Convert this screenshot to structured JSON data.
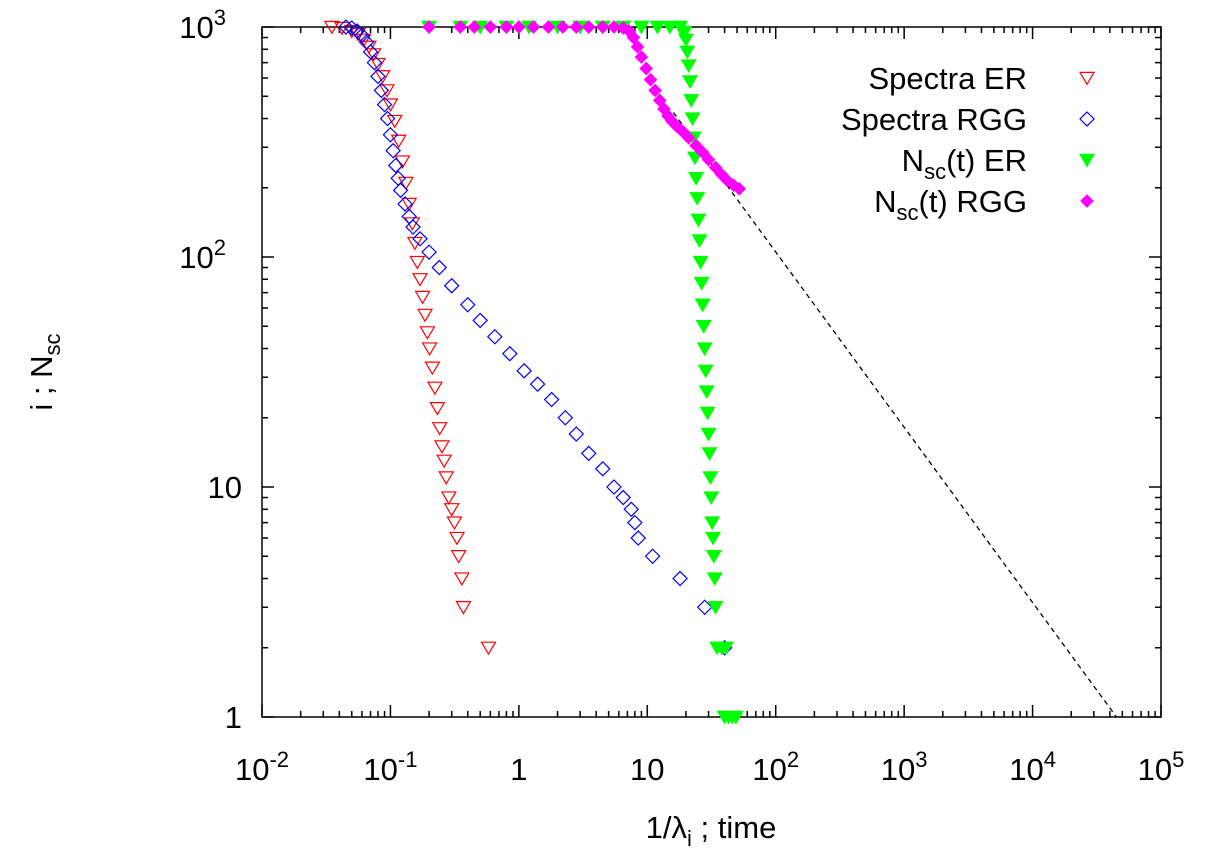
{
  "chart_data": {
    "type": "scatter",
    "title": "",
    "xlabel": "1/λ_i ; time",
    "ylabel": "i ; N_sc",
    "x_scale": "log",
    "y_scale": "log",
    "xlim": [
      0.01,
      100000
    ],
    "ylim": [
      1,
      1000
    ],
    "grid": false,
    "legend_position": "top-right",
    "x_ticks": [
      {
        "value": 0.01,
        "base": "10",
        "exp": "-2"
      },
      {
        "value": 0.1,
        "base": "10",
        "exp": "-1"
      },
      {
        "value": 1,
        "base": "1",
        "exp": ""
      },
      {
        "value": 10,
        "base": "10",
        "exp": ""
      },
      {
        "value": 100,
        "base": "10",
        "exp": "2"
      },
      {
        "value": 1000,
        "base": "10",
        "exp": "3"
      },
      {
        "value": 10000,
        "base": "10",
        "exp": "4"
      },
      {
        "value": 100000,
        "base": "10",
        "exp": "5"
      }
    ],
    "y_ticks": [
      {
        "value": 1,
        "base": "1",
        "exp": ""
      },
      {
        "value": 10,
        "base": "10",
        "exp": ""
      },
      {
        "value": 100,
        "base": "10",
        "exp": "2"
      },
      {
        "value": 1000,
        "base": "10",
        "exp": "3"
      }
    ],
    "series": [
      {
        "name": "Spectra ER",
        "name_main": "Spectra ER",
        "name_sub": "",
        "name_rest": "",
        "marker": "triangle-down-open",
        "color": "#ff0000",
        "points": [
          [
            0.035,
            1000
          ],
          [
            0.042,
            990
          ],
          [
            0.05,
            960
          ],
          [
            0.056,
            930
          ],
          [
            0.062,
            880
          ],
          [
            0.068,
            820
          ],
          [
            0.074,
            760
          ],
          [
            0.08,
            690
          ],
          [
            0.087,
            610
          ],
          [
            0.094,
            530
          ],
          [
            0.1,
            460
          ],
          [
            0.108,
            390
          ],
          [
            0.116,
            320
          ],
          [
            0.124,
            260
          ],
          [
            0.132,
            210
          ],
          [
            0.14,
            170
          ],
          [
            0.148,
            140
          ],
          [
            0.155,
            115
          ],
          [
            0.162,
            95
          ],
          [
            0.17,
            80
          ],
          [
            0.178,
            67
          ],
          [
            0.186,
            56
          ],
          [
            0.194,
            47
          ],
          [
            0.202,
            40
          ],
          [
            0.212,
            33
          ],
          [
            0.222,
            27
          ],
          [
            0.232,
            22
          ],
          [
            0.242,
            18
          ],
          [
            0.252,
            15
          ],
          [
            0.262,
            13
          ],
          [
            0.272,
            11
          ],
          [
            0.285,
            9
          ],
          [
            0.3,
            8
          ],
          [
            0.315,
            7
          ],
          [
            0.33,
            6
          ],
          [
            0.34,
            5
          ],
          [
            0.36,
            4
          ],
          [
            0.37,
            3
          ],
          [
            0.58,
            2
          ]
        ]
      },
      {
        "name": "Spectra RGG",
        "name_main": "Spectra RGG",
        "name_sub": "",
        "name_rest": "",
        "marker": "diamond-open",
        "color": "#0000ff",
        "points": [
          [
            0.045,
            1000
          ],
          [
            0.05,
            990
          ],
          [
            0.055,
            960
          ],
          [
            0.06,
            920
          ],
          [
            0.065,
            860
          ],
          [
            0.07,
            780
          ],
          [
            0.075,
            700
          ],
          [
            0.08,
            610
          ],
          [
            0.085,
            530
          ],
          [
            0.09,
            460
          ],
          [
            0.095,
            400
          ],
          [
            0.1,
            340
          ],
          [
            0.105,
            290
          ],
          [
            0.11,
            250
          ],
          [
            0.115,
            220
          ],
          [
            0.12,
            195
          ],
          [
            0.13,
            170
          ],
          [
            0.14,
            150
          ],
          [
            0.15,
            135
          ],
          [
            0.17,
            120
          ],
          [
            0.2,
            105
          ],
          [
            0.24,
            90
          ],
          [
            0.3,
            75
          ],
          [
            0.4,
            62
          ],
          [
            0.5,
            53
          ],
          [
            0.65,
            45
          ],
          [
            0.85,
            38
          ],
          [
            1.1,
            32
          ],
          [
            1.4,
            28
          ],
          [
            1.8,
            24
          ],
          [
            2.3,
            20
          ],
          [
            2.8,
            17
          ],
          [
            3.5,
            14
          ],
          [
            4.5,
            12
          ],
          [
            5.5,
            10
          ],
          [
            6.5,
            9
          ],
          [
            7.5,
            8
          ],
          [
            8,
            7
          ],
          [
            8.5,
            6
          ],
          [
            11,
            5
          ],
          [
            18,
            4
          ],
          [
            28,
            3
          ],
          [
            40,
            2
          ]
        ]
      },
      {
        "name": "N_sc(t) ER",
        "name_main": "N",
        "name_sub": "sc",
        "name_rest": "(t) ER",
        "marker": "triangle-down-filled",
        "color": "#00ff00",
        "points": [
          [
            0.2,
            1000
          ],
          [
            0.35,
            1000
          ],
          [
            0.5,
            1000
          ],
          [
            0.8,
            1000
          ],
          [
            1.2,
            1000
          ],
          [
            2,
            1000
          ],
          [
            3,
            1000
          ],
          [
            4.5,
            1000
          ],
          [
            6.5,
            1000
          ],
          [
            9,
            1000
          ],
          [
            12,
            1000
          ],
          [
            15,
            1000
          ],
          [
            18,
            1000
          ],
          [
            19.5,
            950
          ],
          [
            20,
            880
          ],
          [
            20.5,
            780
          ],
          [
            21,
            680
          ],
          [
            21.5,
            580
          ],
          [
            22,
            480
          ],
          [
            22.5,
            400
          ],
          [
            23,
            330
          ],
          [
            23.5,
            270
          ],
          [
            24,
            220
          ],
          [
            24.5,
            180
          ],
          [
            25,
            145
          ],
          [
            25.5,
            118
          ],
          [
            26,
            95
          ],
          [
            26.5,
            77
          ],
          [
            27,
            62
          ],
          [
            27.5,
            50
          ],
          [
            28,
            40
          ],
          [
            28.5,
            32
          ],
          [
            29,
            26
          ],
          [
            29.5,
            21
          ],
          [
            30,
            17
          ],
          [
            30.5,
            14
          ],
          [
            31,
            11
          ],
          [
            31.5,
            9
          ],
          [
            32,
            7
          ],
          [
            32.5,
            6
          ],
          [
            33,
            5
          ],
          [
            33.5,
            4
          ],
          [
            34,
            3
          ],
          [
            35,
            2
          ],
          [
            38,
            2
          ],
          [
            41,
            2
          ],
          [
            40,
            1
          ],
          [
            43,
            1
          ],
          [
            46,
            1
          ],
          [
            49,
            1
          ]
        ]
      },
      {
        "name": "N_sc(t) RGG",
        "name_main": "N",
        "name_sub": "sc",
        "name_rest": "(t) RGG",
        "marker": "diamond-filled",
        "color": "#ff00ff",
        "points": [
          [
            0.2,
            1000
          ],
          [
            0.35,
            1000
          ],
          [
            0.45,
            1000
          ],
          [
            0.6,
            1000
          ],
          [
            0.8,
            1000
          ],
          [
            1.0,
            1000
          ],
          [
            1.3,
            1000
          ],
          [
            1.7,
            1000
          ],
          [
            2.2,
            1000
          ],
          [
            2.8,
            1000
          ],
          [
            3.5,
            1000
          ],
          [
            4.5,
            1000
          ],
          [
            5.5,
            1000
          ],
          [
            6.5,
            990
          ],
          [
            7.2,
            960
          ],
          [
            7.8,
            900
          ],
          [
            8.4,
            820
          ],
          [
            9,
            740
          ],
          [
            9.8,
            660
          ],
          [
            10.6,
            590
          ],
          [
            11.5,
            530
          ],
          [
            12.5,
            480
          ],
          [
            13.5,
            440
          ],
          [
            14.5,
            410
          ],
          [
            15.5,
            390
          ],
          [
            17,
            370
          ],
          [
            19,
            350
          ],
          [
            21,
            330
          ],
          [
            24,
            305
          ],
          [
            27,
            285
          ],
          [
            30,
            265
          ],
          [
            34,
            245
          ],
          [
            38,
            228
          ],
          [
            42,
            215
          ],
          [
            47,
            205
          ],
          [
            52,
            198
          ]
        ]
      }
    ],
    "reference_line": {
      "style": "dashed",
      "color": "#000000",
      "points": [
        [
          16,
          425
        ],
        [
          45000,
          1
        ]
      ]
    }
  }
}
